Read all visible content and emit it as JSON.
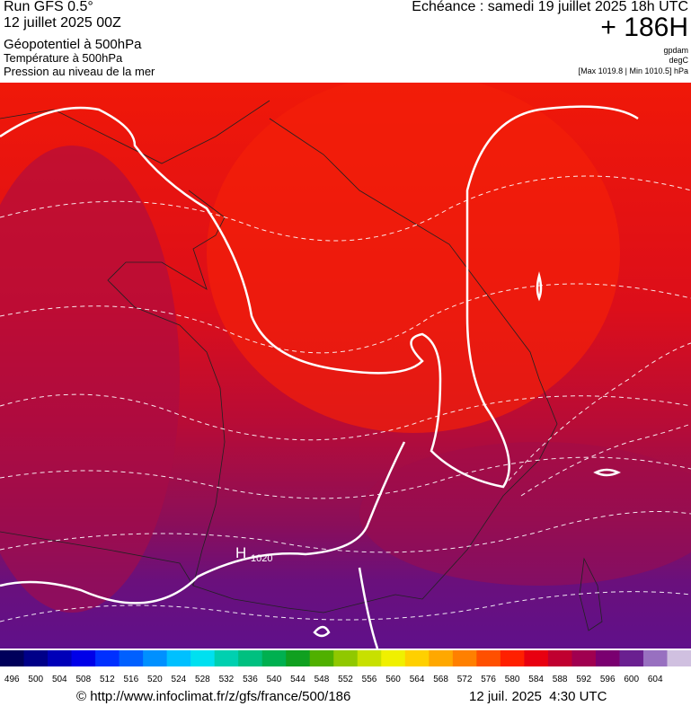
{
  "header": {
    "run": "Run GFS 0.5°",
    "run_date": "12 juillet 2025 00Z",
    "field1": "Géopotentiel à 500hPa",
    "field2": "Température à 500hPa",
    "field3": "Pression au niveau de la mer",
    "valid": "Echéance : samedi 19 juillet 2025 18h UTC",
    "lead": "+ 186H",
    "unit1": "gpdam",
    "unit2": "degC",
    "pressure_range": "[Max 1019.8 | Min 1010.5] hPa"
  },
  "map": {
    "high_label": "H",
    "high_value": "1020"
  },
  "colorbar": {
    "levels": [
      496,
      500,
      504,
      508,
      512,
      516,
      520,
      524,
      528,
      532,
      536,
      540,
      544,
      548,
      552,
      556,
      560,
      564,
      568,
      572,
      576,
      580,
      584,
      588,
      592,
      596,
      600,
      604
    ],
    "colors": [
      "#00005a",
      "#000088",
      "#0000b8",
      "#0000e8",
      "#0030ff",
      "#0060ff",
      "#0090ff",
      "#00c0ff",
      "#00e0f0",
      "#00d0b0",
      "#00c080",
      "#00b050",
      "#10a020",
      "#50b000",
      "#90c800",
      "#c8e000",
      "#f0f000",
      "#ffd000",
      "#ffa800",
      "#ff8000",
      "#ff5000",
      "#ff2000",
      "#e80010",
      "#c00030",
      "#a00050",
      "#7a0070",
      "#6a2090",
      "#9870c0",
      "#d0c0e0"
    ]
  },
  "footer": {
    "source": "© http://www.infoclimat.fr/z/gfs/france/500/186",
    "timestamp": "12 juil. 2025  4:30 UTC"
  }
}
